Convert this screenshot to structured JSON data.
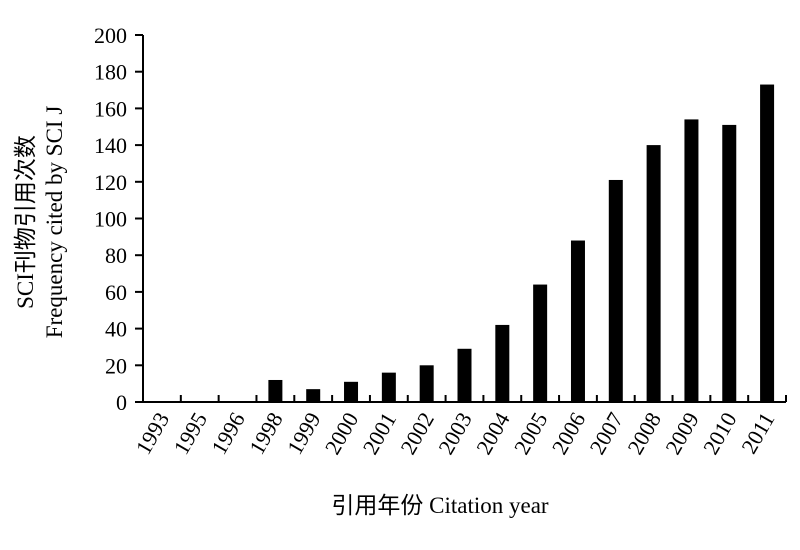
{
  "chart_data": {
    "type": "bar",
    "categories": [
      "1993",
      "1995",
      "1996",
      "1998",
      "1999",
      "2000",
      "2001",
      "2002",
      "2003",
      "2004",
      "2005",
      "2006",
      "2007",
      "2008",
      "2009",
      "2010",
      "2011"
    ],
    "values": [
      0,
      0,
      0,
      12,
      7,
      11,
      16,
      20,
      29,
      42,
      64,
      88,
      121,
      140,
      154,
      151,
      173
    ],
    "xlabel": "引用年份  Citation year",
    "ylabel_line1": "SCI刊物引用次数",
    "ylabel_line2": "Frequency cited by SCI J",
    "ylim": [
      0,
      200
    ],
    "yticks": [
      0,
      20,
      40,
      60,
      80,
      100,
      120,
      140,
      160,
      180,
      200
    ],
    "bar_color": "#000000",
    "grid": false
  }
}
